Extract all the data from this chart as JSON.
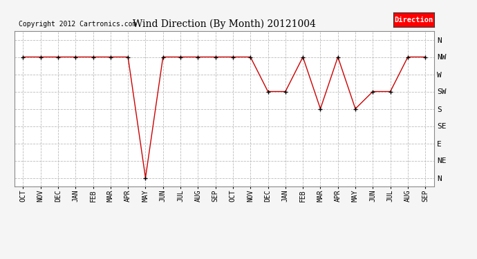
{
  "title": "Wind Direction (By Month) 20121004",
  "copyright": "Copyright 2012 Cartronics.com",
  "legend_label": "Direction",
  "legend_bg": "#ff0000",
  "legend_text_color": "#ffffff",
  "line_color": "#cc0000",
  "marker_color": "#000000",
  "background_color": "#f5f5f5",
  "plot_bg_color": "#ffffff",
  "grid_color": "#bbbbbb",
  "x_labels": [
    "OCT",
    "NOV",
    "DEC",
    "JAN",
    "FEB",
    "MAR",
    "APR",
    "MAY",
    "JUN",
    "JUL",
    "AUG",
    "SEP",
    "OCT",
    "NOV",
    "DEC",
    "JAN",
    "FEB",
    "MAR",
    "APR",
    "MAY",
    "JUN",
    "JUL",
    "AUG",
    "SEP"
  ],
  "y_labels_top_to_bottom": [
    "N",
    "NW",
    "W",
    "SW",
    "S",
    "SE",
    "E",
    "NE",
    "N"
  ],
  "data_points": [
    {
      "x": 0,
      "label": "NW"
    },
    {
      "x": 1,
      "label": "NW"
    },
    {
      "x": 2,
      "label": "NW"
    },
    {
      "x": 3,
      "label": "NW"
    },
    {
      "x": 4,
      "label": "NW"
    },
    {
      "x": 5,
      "label": "NW"
    },
    {
      "x": 6,
      "label": "NW"
    },
    {
      "x": 7,
      "label": "N"
    },
    {
      "x": 8,
      "label": "NW"
    },
    {
      "x": 9,
      "label": "NW"
    },
    {
      "x": 10,
      "label": "NW"
    },
    {
      "x": 11,
      "label": "NW"
    },
    {
      "x": 12,
      "label": "NW"
    },
    {
      "x": 13,
      "label": "NW"
    },
    {
      "x": 14,
      "label": "SW"
    },
    {
      "x": 15,
      "label": "SW"
    },
    {
      "x": 16,
      "label": "NW"
    },
    {
      "x": 17,
      "label": "S"
    },
    {
      "x": 18,
      "label": "NW"
    },
    {
      "x": 19,
      "label": "S"
    },
    {
      "x": 20,
      "label": "SW"
    },
    {
      "x": 21,
      "label": "SW"
    },
    {
      "x": 22,
      "label": "NW"
    },
    {
      "x": 23,
      "label": "NW"
    }
  ]
}
